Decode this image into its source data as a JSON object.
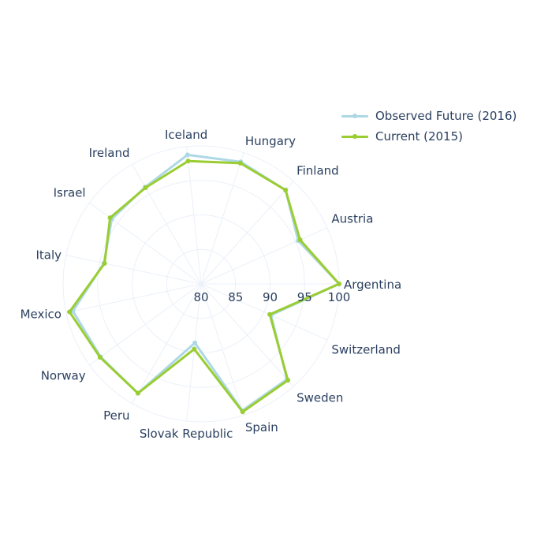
{
  "chart_data": {
    "type": "radar",
    "radial_range": [
      80,
      100
    ],
    "radial_ticks": [
      "80",
      "85",
      "90",
      "95",
      "100"
    ],
    "categories": [
      "Argentina",
      "Austria",
      "Finland",
      "Hungary",
      "Iceland",
      "Ireland",
      "Israel",
      "Italy",
      "Mexico",
      "Norway",
      "Peru",
      "Slovak Republic",
      "Spain",
      "Sweden",
      "Switzerland"
    ],
    "series": [
      {
        "name": "Observed Future (2016)",
        "color": "#add8e6",
        "values": [
          100,
          95.4,
          98.3,
          98.6,
          98.8,
          96.2,
          96.0,
          94.4,
          99.0,
          98.0,
          98.3,
          88.6,
          99.3,
          98.6,
          91.1
        ]
      },
      {
        "name": "Current (2015)",
        "color": "#9acd32",
        "values": [
          100,
          95.7,
          98.3,
          98.4,
          97.9,
          96.1,
          96.3,
          94.3,
          99.5,
          98.1,
          98.3,
          89.5,
          99.5,
          98.8,
          90.9
        ]
      }
    ],
    "legend_position": "top-right",
    "grid": true
  }
}
